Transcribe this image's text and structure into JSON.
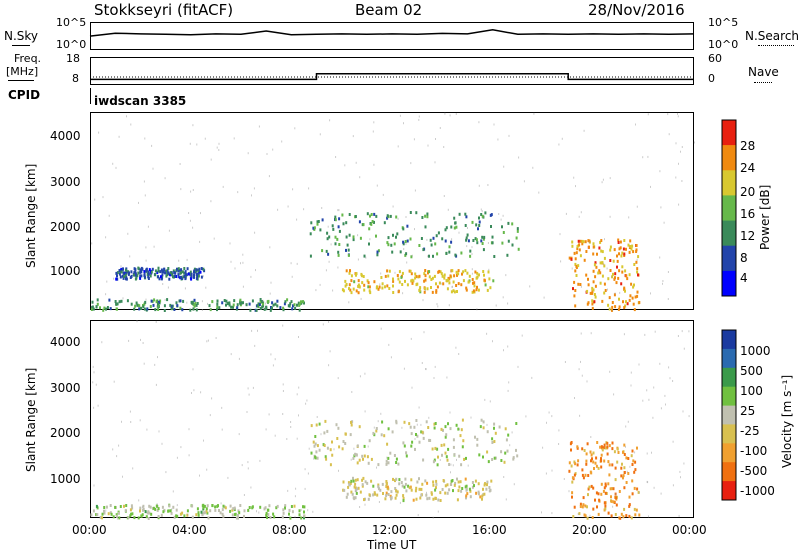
{
  "header": {
    "station": "Stokkseyri (fitACF)",
    "beam": "Beam 02",
    "date": "28/Nov/2016"
  },
  "noise_panel": {
    "left_label": "N.Sky",
    "right_label": "N.Search",
    "left_ticks": [
      "10^5",
      "10^0"
    ],
    "right_ticks": [
      "10^5",
      "10^0"
    ]
  },
  "freq_panel": {
    "left_label_1": "Freq.",
    "left_label_2": "[MHz]",
    "right_label": "Nave",
    "left_ticks": [
      "18",
      "8"
    ],
    "right_ticks": [
      "60",
      "0"
    ]
  },
  "cpid_panel": {
    "label": "CPID",
    "program": "iwdscan 3385"
  },
  "power_panel": {
    "ylabel": "Slant Range [km]",
    "yticks": [
      "4000",
      "3000",
      "2000",
      "1000"
    ],
    "colorbar_label": "Power [dB]",
    "colorbar_ticks": [
      "28",
      "24",
      "20",
      "16",
      "12",
      "8",
      "4"
    ]
  },
  "velocity_panel": {
    "ylabel": "Slant Range [km]",
    "yticks": [
      "4000",
      "3000",
      "2000",
      "1000"
    ],
    "colorbar_label": "Velocity [m s⁻¹]",
    "colorbar_ticks": [
      "1000",
      "500",
      "100",
      "25",
      "-25",
      "-100",
      "-500",
      "-1000"
    ]
  },
  "xaxis": {
    "label": "Time UT",
    "ticks": [
      "00:00",
      "04:00",
      "08:00",
      "12:00",
      "16:00",
      "20:00",
      "00:00"
    ]
  },
  "colors": {
    "power_scale": [
      "#0000ff",
      "#2244aa",
      "#3a8a5a",
      "#66b84a",
      "#d8c830",
      "#f08a10",
      "#e82010"
    ],
    "velocity_scale": [
      "#1a3aa0",
      "#2a6ab0",
      "#3a9a4a",
      "#70c040",
      "#c0c0b0",
      "#d8c050",
      "#f0a030",
      "#f07010",
      "#e82010"
    ]
  },
  "chart_data": [
    {
      "type": "line",
      "title": "",
      "xlabel": "",
      "ylabel": "N.Sky",
      "series": [
        {
          "values": [
            0.62,
            0.75,
            0.72,
            0.7,
            0.68,
            0.72,
            0.7,
            0.85,
            0.68,
            0.7,
            0.72,
            0.7,
            0.72,
            0.7,
            0.74,
            0.72,
            0.9,
            0.7,
            0.72,
            0.7,
            0.72,
            0.7,
            0.72,
            0.7,
            0.72
          ]
        }
      ],
      "x": [
        0,
        1,
        2,
        3,
        4,
        5,
        6,
        7,
        8,
        9,
        10,
        11,
        12,
        13,
        14,
        15,
        16,
        17,
        18,
        19,
        20,
        21,
        22,
        23,
        24
      ]
    },
    {
      "type": "line",
      "title": "",
      "xlabel": "",
      "ylabel": "Freq. [MHz]",
      "ylim": [
        8,
        18
      ],
      "series": [
        {
          "values": [
            10,
            10,
            10,
            10,
            10,
            10,
            10,
            10,
            10,
            12,
            12,
            12,
            12,
            12,
            12,
            12,
            12,
            12,
            12,
            10,
            10,
            10,
            10,
            10,
            10
          ]
        }
      ],
      "x": [
        0,
        1,
        2,
        3,
        4,
        5,
        6,
        7,
        8,
        9,
        10,
        11,
        12,
        13,
        14,
        15,
        16,
        17,
        18,
        19,
        20,
        21,
        22,
        23,
        24
      ]
    },
    {
      "type": "heatmap",
      "title": "",
      "xlabel": "",
      "ylabel": "Slant Range [km]",
      "ylim": [
        180,
        4600
      ],
      "xlim": [
        0,
        24
      ],
      "colorbar": "Power [dB]",
      "features": [
        {
          "t_start": 0.0,
          "t_end": 8.5,
          "r_start": 200,
          "r_end": 450,
          "value": 12
        },
        {
          "t_start": 1.0,
          "t_end": 4.5,
          "r_start": 900,
          "r_end": 1150,
          "value": 8
        },
        {
          "t_start": 8.7,
          "t_end": 17.0,
          "r_start": 1400,
          "r_end": 2400,
          "value": 12
        },
        {
          "t_start": 10.0,
          "t_end": 16.0,
          "r_start": 600,
          "r_end": 1100,
          "value": 22
        },
        {
          "t_start": 19.0,
          "t_end": 21.8,
          "r_start": 200,
          "r_end": 1800,
          "value": 24
        }
      ]
    },
    {
      "type": "heatmap",
      "title": "",
      "xlabel": "Time UT",
      "ylabel": "Slant Range [km]",
      "ylim": [
        180,
        4600
      ],
      "xlim": [
        0,
        24
      ],
      "colorbar": "Velocity [m s⁻¹]",
      "features": [
        {
          "t_start": 0.0,
          "t_end": 8.5,
          "r_start": 200,
          "r_end": 500,
          "value": 100
        },
        {
          "t_start": 8.7,
          "t_end": 17.0,
          "r_start": 1400,
          "r_end": 2400,
          "value": 0
        },
        {
          "t_start": 10.0,
          "t_end": 16.0,
          "r_start": 600,
          "r_end": 1100,
          "value": -100
        },
        {
          "t_start": 19.0,
          "t_end": 21.8,
          "r_start": 200,
          "r_end": 1900,
          "value": -500
        }
      ]
    }
  ]
}
